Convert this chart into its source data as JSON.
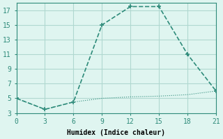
{
  "xlabel": "Humidex (Indice chaleur)",
  "line1_x": [
    0,
    3,
    6,
    9,
    12,
    15,
    18,
    21
  ],
  "line1_y": [
    5,
    3.5,
    4.5,
    15,
    17.5,
    17.5,
    11,
    6
  ],
  "line2_x": [
    0,
    3,
    6,
    9,
    12,
    15,
    18,
    21
  ],
  "line2_y": [
    5,
    3.5,
    4.5,
    5.0,
    5.2,
    5.3,
    5.5,
    6
  ],
  "line_color": "#2e8b7a",
  "bg_color": "#dff5f0",
  "grid_color": "#b0d8d0",
  "xlim": [
    0,
    21
  ],
  "ylim": [
    3,
    18
  ],
  "xticks": [
    0,
    3,
    6,
    9,
    12,
    15,
    18,
    21
  ],
  "yticks": [
    3,
    5,
    7,
    9,
    11,
    13,
    15,
    17
  ]
}
